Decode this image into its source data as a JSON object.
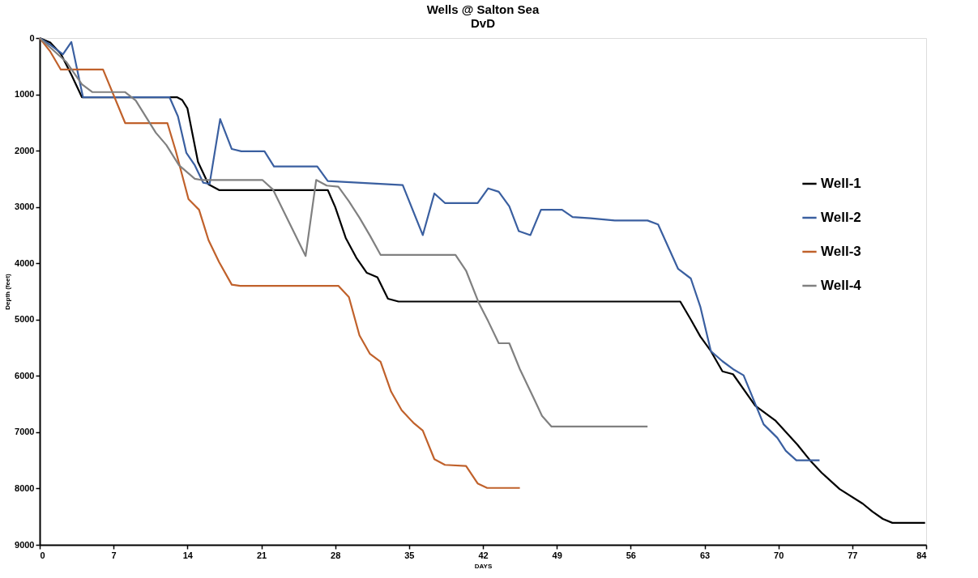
{
  "chart_data": {
    "type": "line",
    "title": "Wells @ Salton Sea",
    "subtitle": "DvD",
    "xlabel": "DAYS",
    "ylabel": "Depth (feet)",
    "xlim": [
      0,
      84
    ],
    "xticks": [
      0,
      7,
      14,
      21,
      28,
      35,
      42,
      49,
      56,
      63,
      70,
      77,
      84
    ],
    "ylim": [
      9000,
      0
    ],
    "yticks": [
      0,
      1000,
      2000,
      3000,
      4000,
      5000,
      6000,
      7000,
      8000,
      9000
    ],
    "grid": false,
    "legend": "right",
    "marker": "none",
    "line_style": "solid",
    "series": [
      {
        "name": "Well-1",
        "color": "#000000",
        "x": [
          0,
          1,
          2,
          3,
          4,
          13,
          13.5,
          14,
          15,
          16,
          17,
          27.3,
          28,
          29,
          30,
          31,
          32,
          33,
          34,
          60.7,
          61.7,
          62.6,
          63.6,
          64.7,
          65.7,
          67.8,
          69.7,
          71.8,
          73,
          74.1,
          75.8,
          78,
          78.9,
          79.9,
          80.8,
          83.9
        ],
        "values": [
          0,
          80,
          280,
          650,
          1050,
          1050,
          1100,
          1250,
          2200,
          2600,
          2700,
          2700,
          3000,
          3550,
          3900,
          4170,
          4250,
          4630,
          4680,
          4680,
          5000,
          5300,
          5560,
          5920,
          5970,
          6530,
          6790,
          7220,
          7500,
          7720,
          8010,
          8270,
          8410,
          8540,
          8610,
          8610
        ]
      },
      {
        "name": "Well-2",
        "color": "#3a5fa0",
        "x": [
          0,
          1,
          2.2,
          3,
          4.1,
          12.3,
          13.1,
          13.9,
          14.7,
          15.5,
          16.1,
          17.1,
          18.2,
          19.1,
          21.3,
          22.2,
          26.3,
          27.3,
          34.4,
          36.3,
          37.4,
          38.4,
          41.5,
          42.5,
          43.5,
          44.5,
          45.4,
          46.5,
          47.5,
          49.5,
          50.5,
          52.2,
          54.5,
          57.6,
          58.6,
          60.5,
          61.7,
          62.6,
          63.6,
          64.7,
          65.7,
          66.7,
          68.6,
          69.9,
          70.7,
          71.7,
          73.9
        ],
        "values": [
          0,
          120,
          290,
          70,
          1050,
          1050,
          1390,
          2040,
          2260,
          2570,
          2590,
          1440,
          1970,
          2010,
          2010,
          2280,
          2280,
          2540,
          2610,
          3500,
          2760,
          2930,
          2930,
          2670,
          2730,
          2990,
          3430,
          3500,
          3050,
          3050,
          3180,
          3200,
          3240,
          3240,
          3310,
          4100,
          4270,
          4770,
          5560,
          5740,
          5880,
          5990,
          6860,
          7100,
          7330,
          7500,
          7500
        ]
      },
      {
        "name": "Well-3",
        "color": "#c0612b",
        "x": [
          0,
          1,
          2,
          6,
          8.1,
          12.1,
          12.9,
          14.1,
          15.1,
          16,
          17,
          18.2,
          19,
          28.3,
          29.3,
          30.3,
          31.3,
          32.3,
          33.3,
          34.3,
          35.4,
          36.3,
          37.4,
          38.4,
          40.4,
          41.5,
          42.4,
          45.5
        ],
        "values": [
          0,
          240,
          560,
          560,
          1510,
          1510,
          2010,
          2860,
          3050,
          3590,
          3980,
          4380,
          4400,
          4400,
          4600,
          5280,
          5610,
          5750,
          6280,
          6610,
          6830,
          6970,
          7480,
          7580,
          7600,
          7910,
          7990,
          7990
        ]
      },
      {
        "name": "Well-4",
        "color": "#808080",
        "x": [
          0,
          2.5,
          4,
          5,
          8.1,
          9.1,
          11,
          12,
          13.2,
          14.7,
          15.3,
          21.1,
          22.1,
          25.2,
          26.2,
          27.2,
          28.3,
          29.3,
          30.3,
          31.3,
          32.3,
          39.4,
          40.4,
          41.6,
          42.5,
          43.5,
          44.5,
          45.5,
          46.9,
          47.6,
          48.5,
          57.6
        ],
        "values": [
          0,
          420,
          820,
          960,
          960,
          1110,
          1680,
          1900,
          2260,
          2500,
          2520,
          2520,
          2690,
          3870,
          2520,
          2620,
          2640,
          2900,
          3190,
          3510,
          3850,
          3850,
          4130,
          4700,
          5030,
          5420,
          5420,
          5880,
          6430,
          6710,
          6900,
          6900
        ]
      }
    ]
  }
}
